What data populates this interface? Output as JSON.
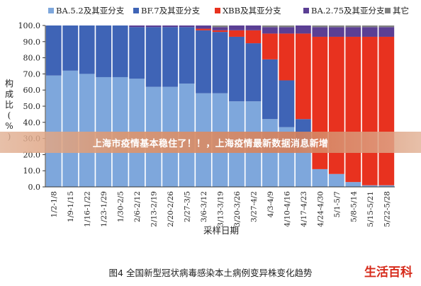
{
  "chart_data": {
    "type": "bar",
    "stacked": true,
    "categories": [
      "1/2-1/8",
      "1/9-1/15",
      "1/16-1/22",
      "1/23-1/29",
      "1/30-2/5",
      "2/6-2/12",
      "2/13-2/19",
      "2/20-2/26",
      "2/27-3/5",
      "3/6-3/12",
      "3/13-3/19",
      "3/20-3/26",
      "3/27-4/2",
      "4/3-4/9",
      "4/10-4/16",
      "4/17-4/23",
      "4/24-4/30",
      "5/1-5/7",
      "5/8-5/14",
      "5/15-5/21",
      "5/22-5/28"
    ],
    "series": [
      {
        "name": "BA.5.2及其亚分支",
        "color": "#7ea7dc",
        "values": [
          69,
          72,
          70,
          68,
          68,
          67,
          62,
          62,
          64,
          58,
          58,
          53,
          53,
          42,
          37,
          27,
          11,
          8,
          3,
          1,
          1
        ]
      },
      {
        "name": "BF.7及其亚分支",
        "color": "#3f64b6",
        "values": [
          31,
          28,
          30,
          32,
          32,
          32,
          37,
          37,
          35,
          39,
          38,
          40,
          36,
          37,
          29,
          15,
          0,
          0,
          0,
          0,
          0
        ]
      },
      {
        "name": "XBB及其亚分支",
        "color": "#e8321f",
        "values": [
          0,
          0,
          0,
          0,
          0,
          0,
          0,
          0,
          0,
          1,
          1,
          4,
          8,
          16,
          29,
          53,
          82,
          85,
          90,
          92,
          92
        ]
      },
      {
        "name": "BA.2.75及其亚分支",
        "color": "#5b3f94",
        "values": [
          0,
          0,
          0,
          0,
          0,
          1,
          1,
          1,
          1,
          2,
          2,
          3,
          3,
          4,
          4,
          5,
          6,
          6,
          6,
          6,
          6
        ]
      },
      {
        "name": "其它",
        "color": "#808080",
        "values": [
          0,
          0,
          0,
          0,
          0,
          0,
          0,
          0,
          0,
          0,
          1,
          0,
          0,
          1,
          1,
          0,
          1,
          1,
          1,
          1,
          1
        ]
      }
    ],
    "ylim": [
      0,
      100
    ],
    "yticks": [
      "0.0",
      "10.0",
      "20.0",
      "30.0",
      "40.0",
      "50.0",
      "60.0",
      "70.0",
      "80.0",
      "90.0",
      "100.0"
    ],
    "xlabel": "采样日期",
    "ylabel": "构成比(%)",
    "legend_position": "top",
    "grid": false
  },
  "overlay": {
    "banner_text": "上海市疫情基本稳住了！！，上海疫情最新数据消息新增",
    "caption": "图4  全国新型冠状病毒感染本土病例变异株变化趋势",
    "logo": "生活百科"
  }
}
